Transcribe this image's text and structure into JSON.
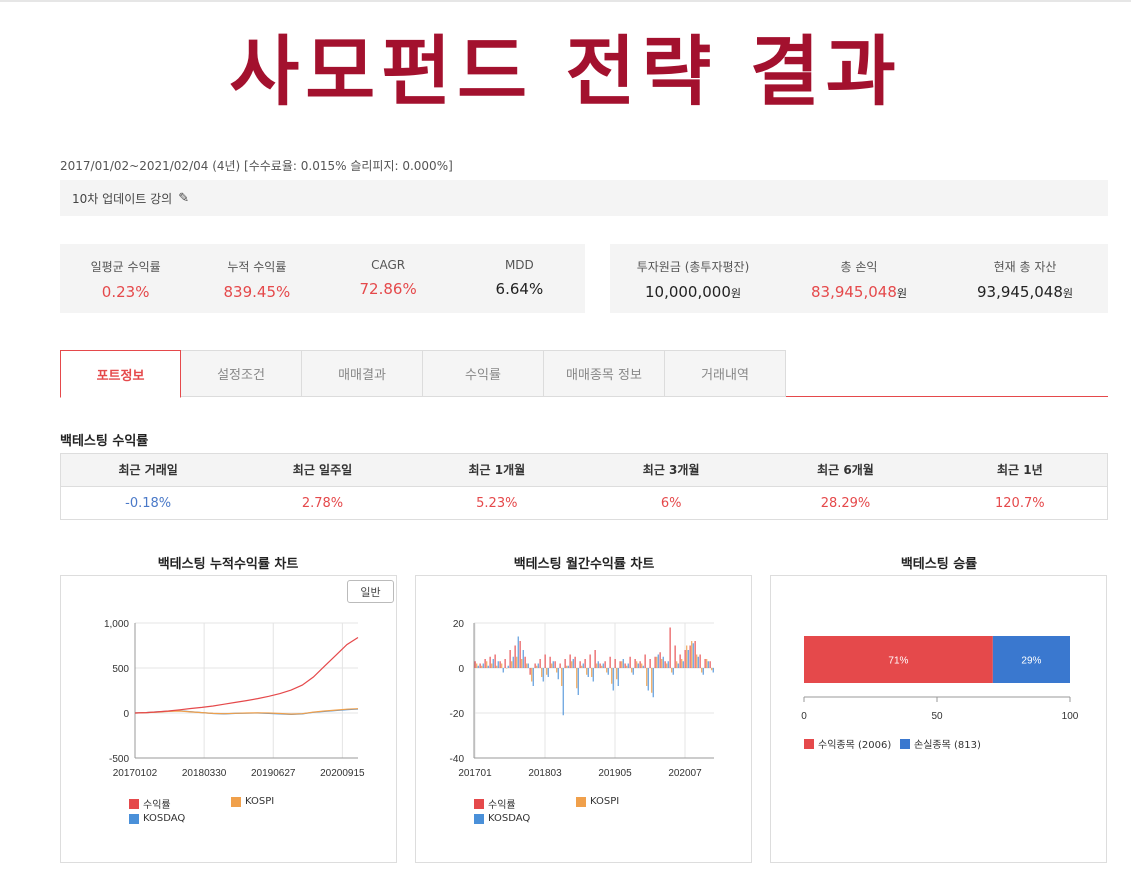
{
  "page_title": "사모펀드 전략 결과",
  "period_text": "2017/01/02~2021/02/04 (4년) [수수료율: 0.015% 슬리피지: 0.000%]",
  "memo": {
    "text": "10차 업데이트 강의",
    "edit_icon": "pencil-icon"
  },
  "stats_left": [
    {
      "label": "일평균 수익률",
      "value": "0.23%"
    },
    {
      "label": "누적 수익률",
      "value": "839.45%"
    },
    {
      "label": "CAGR",
      "value": "72.86%"
    },
    {
      "label": "MDD",
      "value": "6.64%"
    }
  ],
  "stats_right": [
    {
      "label": "투자원금 (총투자평잔)",
      "value": "10,000,000",
      "unit": "원"
    },
    {
      "label": "총 손익",
      "value": "83,945,048",
      "unit": "원"
    },
    {
      "label": "현재 총 자산",
      "value": "93,945,048",
      "unit": "원"
    }
  ],
  "tabs": [
    "포트정보",
    "설정조건",
    "매매결과",
    "수익률",
    "매매종목 정보",
    "거래내역"
  ],
  "returns_section": {
    "title": "백테스팅 수익률",
    "headers": [
      "최근 거래일",
      "최근 일주일",
      "최근 1개월",
      "최근 3개월",
      "최근 6개월",
      "최근 1년"
    ],
    "values": [
      "-0.18%",
      "2.78%",
      "5.23%",
      "6%",
      "28.29%",
      "120.7%"
    ]
  },
  "colors": {
    "accent": "#a3112e",
    "red": "#e5494b",
    "orange": "#f0a04b",
    "blue": "#4a90d9",
    "loss_blue": "#3a78cf"
  },
  "chart_data": [
    {
      "type": "line",
      "title": "백테스팅 누적수익률 차트",
      "button_label": "일반",
      "x_ticks": [
        "20170102",
        "20180330",
        "20190627",
        "20200915"
      ],
      "y_ticks": [
        "1,000",
        "500",
        "0",
        "-500"
      ],
      "ylim": [
        -500,
        1000
      ],
      "x": [
        0,
        5,
        10,
        15,
        20,
        25,
        30,
        35,
        40,
        45,
        50,
        55,
        60,
        65,
        70,
        75,
        80,
        85,
        90,
        95,
        100
      ],
      "series": [
        {
          "name": "수익률",
          "values": [
            0,
            5,
            12,
            22,
            35,
            50,
            62,
            78,
            98,
            118,
            138,
            160,
            185,
            215,
            255,
            310,
            400,
            520,
            640,
            760,
            839
          ]
        },
        {
          "name": "KOSPI",
          "values": [
            0,
            5,
            10,
            18,
            22,
            12,
            5,
            -5,
            -8,
            -3,
            0,
            2,
            0,
            -6,
            -12,
            -8,
            10,
            22,
            32,
            42,
            48
          ]
        },
        {
          "name": "KOSDAQ",
          "values": [
            0,
            4,
            12,
            20,
            26,
            14,
            4,
            -6,
            -10,
            -4,
            -2,
            0,
            -5,
            -10,
            -16,
            -10,
            8,
            18,
            28,
            38,
            44
          ]
        }
      ],
      "legend": "bottom-left"
    },
    {
      "type": "bar",
      "title": "백테스팅 월간수익률 차트",
      "x_ticks": [
        "201701",
        "201803",
        "201905",
        "202007"
      ],
      "y_ticks": [
        "20",
        "0",
        "-20",
        "-40"
      ],
      "ylim": [
        -40,
        20
      ],
      "series": [
        {
          "name": "수익률",
          "values": [
            3,
            2,
            4,
            5,
            6,
            3,
            4,
            8,
            10,
            12,
            5,
            -3,
            2,
            4,
            6,
            5,
            3,
            2,
            4,
            6,
            5,
            3,
            4,
            6,
            8,
            2,
            3,
            5,
            4,
            3,
            2,
            5,
            4,
            3,
            6,
            4,
            5,
            7,
            3,
            18,
            10,
            6,
            8,
            10,
            12,
            6,
            4,
            3
          ]
        },
        {
          "name": "KOSPI",
          "values": [
            2,
            1,
            3,
            2,
            1,
            2,
            0,
            3,
            5,
            4,
            2,
            -6,
            1,
            -4,
            -3,
            2,
            -2,
            -8,
            1,
            3,
            -9,
            1,
            -3,
            -4,
            2,
            1,
            -2,
            -7,
            -5,
            3,
            1,
            -2,
            3,
            2,
            -8,
            -11,
            5,
            4,
            2,
            -2,
            3,
            4,
            10,
            12,
            6,
            -2,
            4,
            -1
          ]
        },
        {
          "name": "KOSDAQ",
          "values": [
            1,
            2,
            1,
            4,
            3,
            -2,
            1,
            5,
            14,
            8,
            2,
            -8,
            2,
            -6,
            -4,
            3,
            -5,
            -21,
            1,
            4,
            -12,
            2,
            -4,
            -6,
            3,
            2,
            -3,
            -10,
            -8,
            4,
            2,
            -3,
            2,
            1,
            -10,
            -13,
            6,
            5,
            3,
            -3,
            2,
            3,
            8,
            11,
            5,
            -3,
            3,
            -2
          ]
        }
      ],
      "legend": "bottom-left"
    },
    {
      "type": "bar",
      "orientation": "horizontal-stacked",
      "title": "백테스팅 승률",
      "x_ticks": [
        "0",
        "50",
        "100"
      ],
      "xlim": [
        0,
        100
      ],
      "series": [
        {
          "name": "수익종목 (2006)",
          "value": 71,
          "label": "71%"
        },
        {
          "name": "손실종목 (813)",
          "value": 29,
          "label": "29%"
        }
      ],
      "legend": "bottom-left"
    }
  ]
}
